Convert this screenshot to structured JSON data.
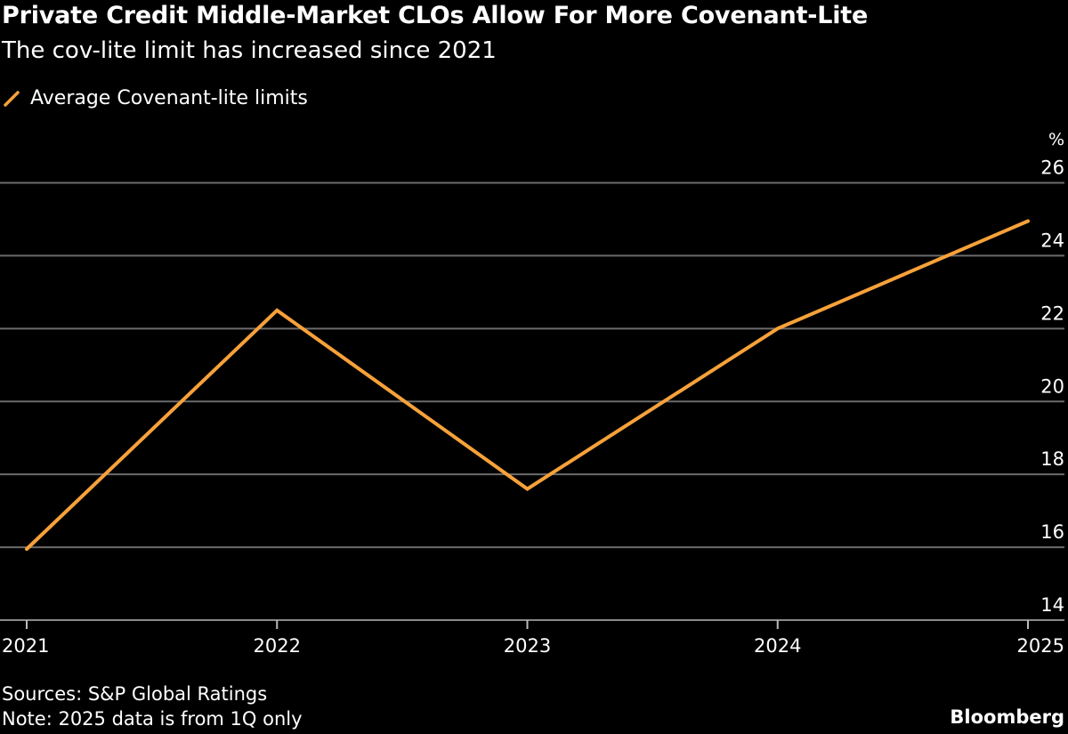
{
  "chart_data": {
    "type": "line",
    "title": "Private Credit Middle-Market CLOs Allow For More Covenant-Lite",
    "subtitle": "The cov-lite limit has increased since 2021",
    "ylabel": "%",
    "x": [
      "2021",
      "2022",
      "2023",
      "2024",
      "2025"
    ],
    "series": [
      {
        "name": "Average Covenant-lite limits",
        "values": [
          15.95,
          22.5,
          17.6,
          22.0,
          24.95
        ],
        "color": "#f7a13a"
      }
    ],
    "ylim": [
      14,
      26
    ],
    "yticks": [
      14,
      16,
      18,
      20,
      22,
      24,
      26
    ],
    "grid": true,
    "legend": "top-left"
  },
  "footer": {
    "source": "Sources: S&P Global Ratings",
    "note": "Note: 2025 data is from 1Q only",
    "brand": "Bloomberg"
  },
  "colors": {
    "background": "#000000",
    "grid": "#6b6b6b",
    "line": "#f7a13a",
    "text": "#ffffff"
  }
}
